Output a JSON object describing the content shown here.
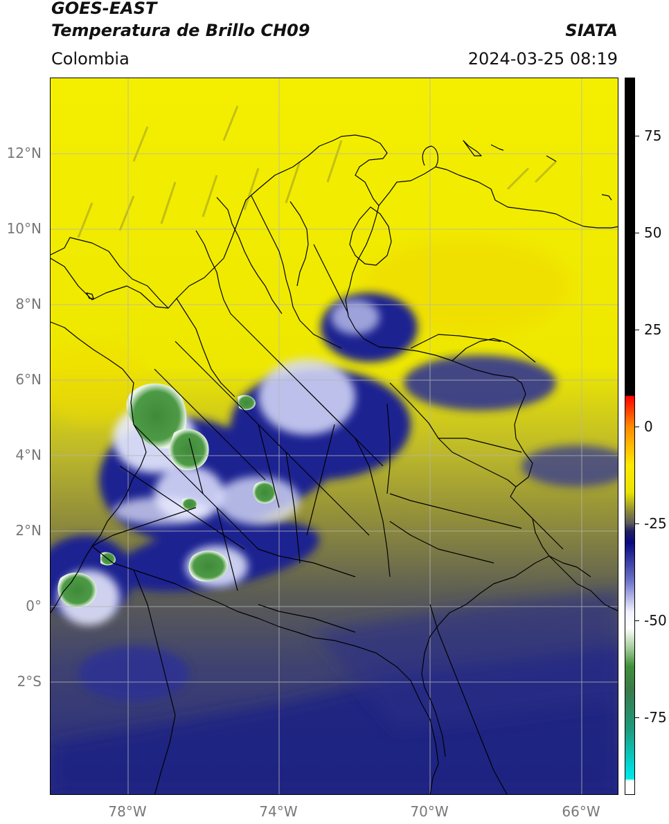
{
  "header": {
    "satellite": "GOES-EAST",
    "product": "Temperatura de Brillo CH09",
    "region": "Colombia",
    "agency": "SIATA",
    "timestamp": "2024-03-25 08:19"
  },
  "map": {
    "lat_range": [
      -5,
      14
    ],
    "lon_range": [
      -80,
      -65
    ],
    "lat_ticks": [
      {
        "value": 12,
        "label": "12°N"
      },
      {
        "value": 10,
        "label": "10°N"
      },
      {
        "value": 8,
        "label": "8°N"
      },
      {
        "value": 6,
        "label": "6°N"
      },
      {
        "value": 4,
        "label": "4°N"
      },
      {
        "value": 2,
        "label": "2°N"
      },
      {
        "value": 0,
        "label": "0°"
      },
      {
        "value": -2,
        "label": "2°S"
      }
    ],
    "lon_ticks": [
      {
        "value": -78,
        "label": "78°W"
      },
      {
        "value": -74,
        "label": "74°W"
      },
      {
        "value": -70,
        "label": "70°W"
      },
      {
        "value": -66,
        "label": "66°W"
      }
    ],
    "colors": {
      "warm_yellow": "#f2ee00",
      "olive": "#8c8a3a",
      "dark_navy": "#1c1f80",
      "gray_navy": "#45466a",
      "cloud_white": "#eef0ff",
      "cold_green": "#3f8f3a",
      "gridline": "#b5b5b5",
      "border": "#000000"
    }
  },
  "colorbar": {
    "range": [
      -95,
      90
    ],
    "ticks": [
      {
        "value": 75,
        "label": "75"
      },
      {
        "value": 50,
        "label": "50"
      },
      {
        "value": 25,
        "label": "25"
      },
      {
        "value": 0,
        "label": "0"
      },
      {
        "value": -25,
        "label": "-25"
      },
      {
        "value": -50,
        "label": "-50"
      },
      {
        "value": -75,
        "label": "-75"
      }
    ],
    "stops": [
      {
        "value": 90,
        "color": "#000000"
      },
      {
        "value": 8,
        "color": "#000000"
      },
      {
        "value": 7.9,
        "color": "#ff0000"
      },
      {
        "value": 0,
        "color": "#ff8a00"
      },
      {
        "value": -10,
        "color": "#ffe800"
      },
      {
        "value": -17,
        "color": "#e8e400"
      },
      {
        "value": -22,
        "color": "#8a873c"
      },
      {
        "value": -25,
        "color": "#5a5a5a"
      },
      {
        "value": -27,
        "color": "#202060"
      },
      {
        "value": -30,
        "color": "#0a0a80"
      },
      {
        "value": -40,
        "color": "#6e74c8"
      },
      {
        "value": -48,
        "color": "#f2f2ff"
      },
      {
        "value": -52,
        "color": "#ffffff"
      },
      {
        "value": -57,
        "color": "#a8cf9e"
      },
      {
        "value": -62,
        "color": "#3f8f3a"
      },
      {
        "value": -68,
        "color": "#3a7a4a"
      },
      {
        "value": -78,
        "color": "#1e9a7a"
      },
      {
        "value": -88,
        "color": "#00d8d8"
      },
      {
        "value": -91,
        "color": "#00e8e8"
      },
      {
        "value": -91.5,
        "color": "#ffffff"
      },
      {
        "value": -95,
        "color": "#ffffff"
      }
    ]
  }
}
